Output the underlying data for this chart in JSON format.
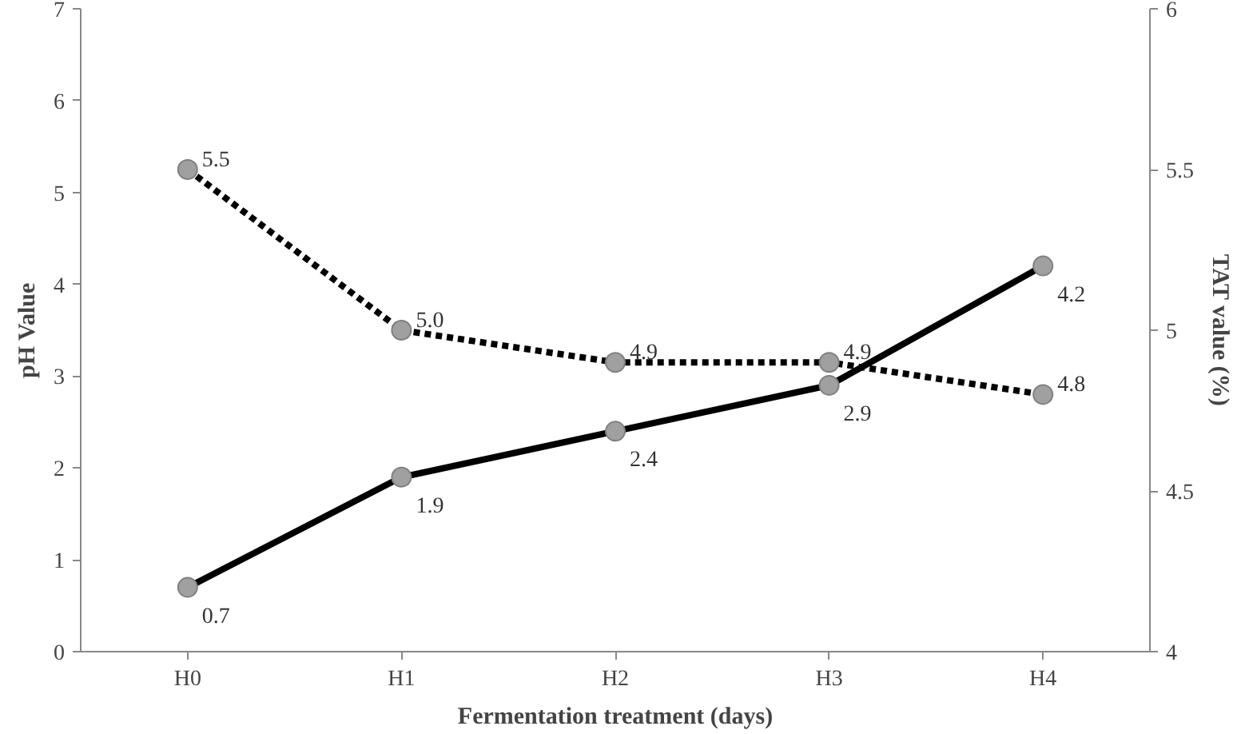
{
  "chart_data": {
    "type": "line",
    "xlabel": "Fermentation treatment (days)",
    "ylabel": "pH Value",
    "y2label": "TAT value (%)",
    "categories": [
      "H0",
      "H1",
      "H2",
      "H3",
      "H4"
    ],
    "series": [
      {
        "color": "#000000",
        "values": [
          0.7,
          1.9,
          2.4,
          2.9,
          4.2
        ],
        "line_style": "solid",
        "marker": "circle"
      },
      {
        "color": "#000000",
        "values": [
          5.5,
          5.0,
          4.9,
          4.9,
          4.8
        ],
        "axis": "y2",
        "line_style": "dotted",
        "marker": "circle",
        "value_labels": [
          "5.5",
          "5.0",
          "4.9",
          "4.9",
          "4.8"
        ]
      }
    ],
    "data_labels": true,
    "ylim": [
      0,
      7
    ],
    "yticks": [
      0,
      1,
      2,
      3,
      4,
      5,
      6,
      7
    ],
    "y2lim": [
      4,
      6
    ],
    "y2ticks": [
      4,
      4.5,
      5,
      5.5,
      6
    ],
    "grid": false
  }
}
